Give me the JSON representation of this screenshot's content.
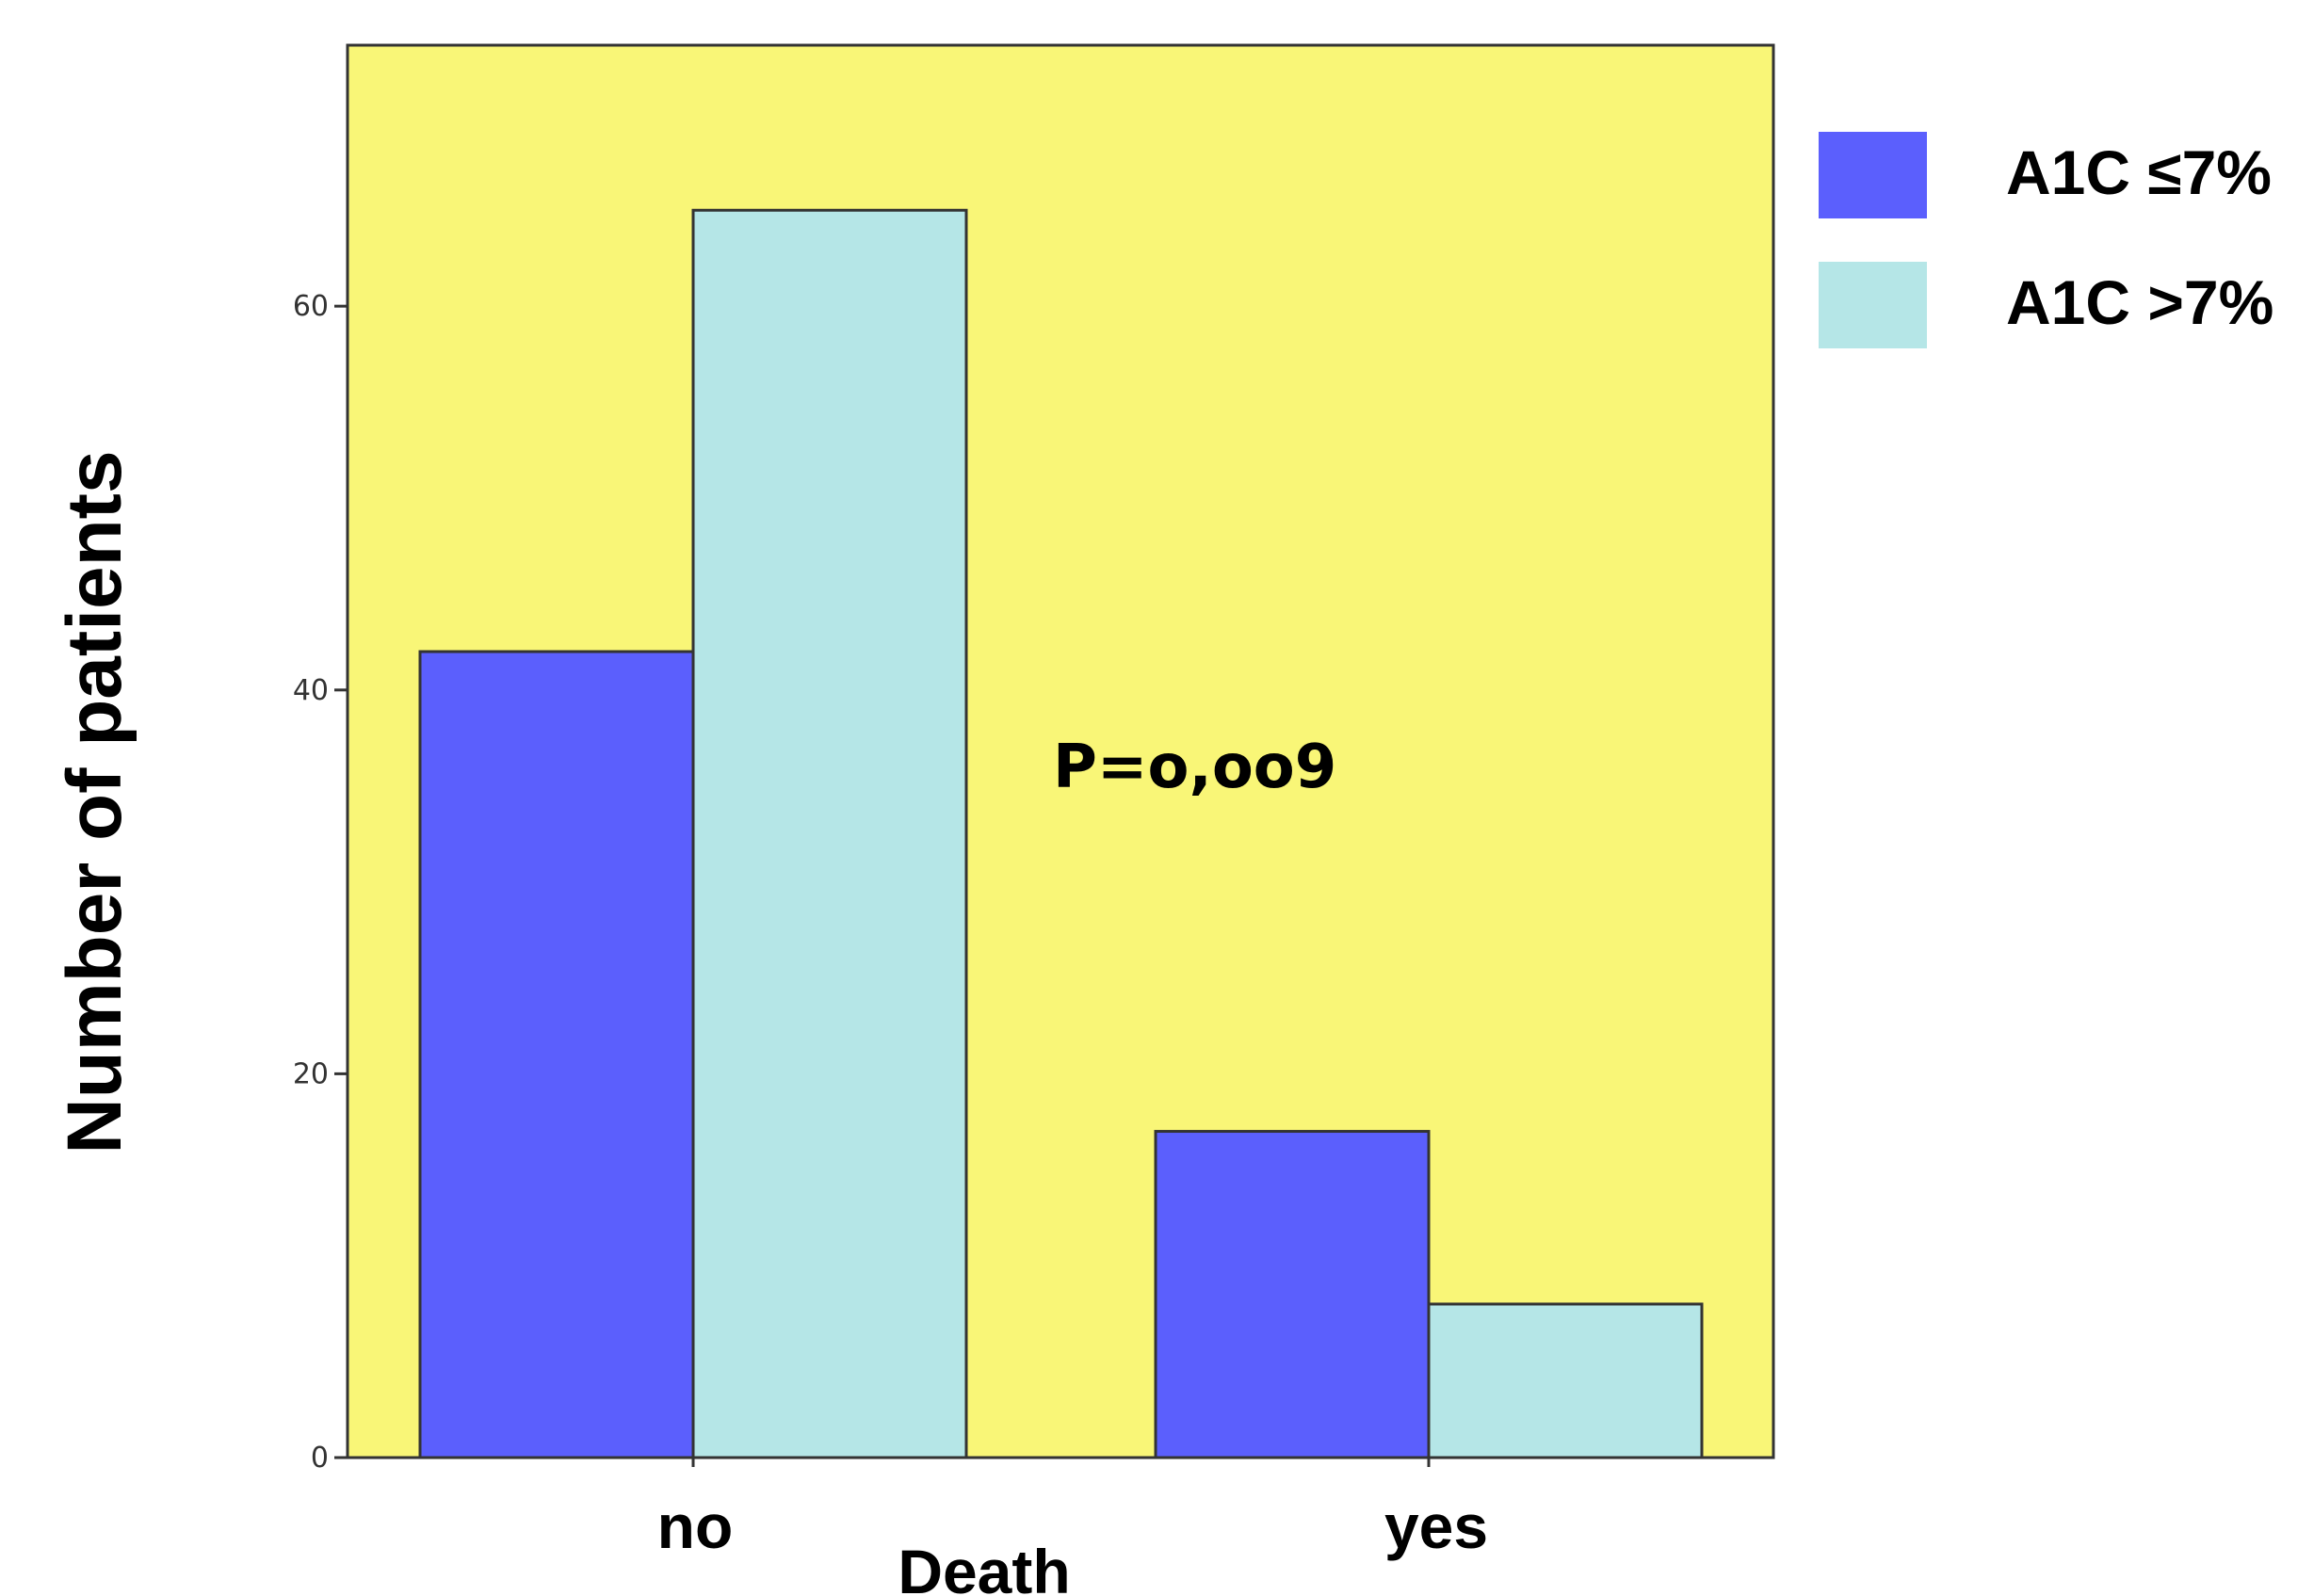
{
  "chart_data": {
    "type": "bar",
    "categories": [
      "no",
      "yes"
    ],
    "series": [
      {
        "name": "A1C ≤7%",
        "values": [
          42,
          17
        ],
        "color": "#5b5ffd"
      },
      {
        "name": "A1C >7%",
        "values": [
          65,
          8
        ],
        "color": "#b5e6e7"
      }
    ],
    "xlabel": "Death",
    "ylabel": "Number of patients",
    "ylim": [
      0,
      73.6
    ],
    "yticks": [
      0,
      20,
      40,
      60
    ],
    "ytick_labels": [
      "0",
      "20",
      "40",
      "60"
    ],
    "annotation": "P=o,oo9",
    "plot_background": "#f9f677",
    "legend_position": "right",
    "grid": false
  }
}
